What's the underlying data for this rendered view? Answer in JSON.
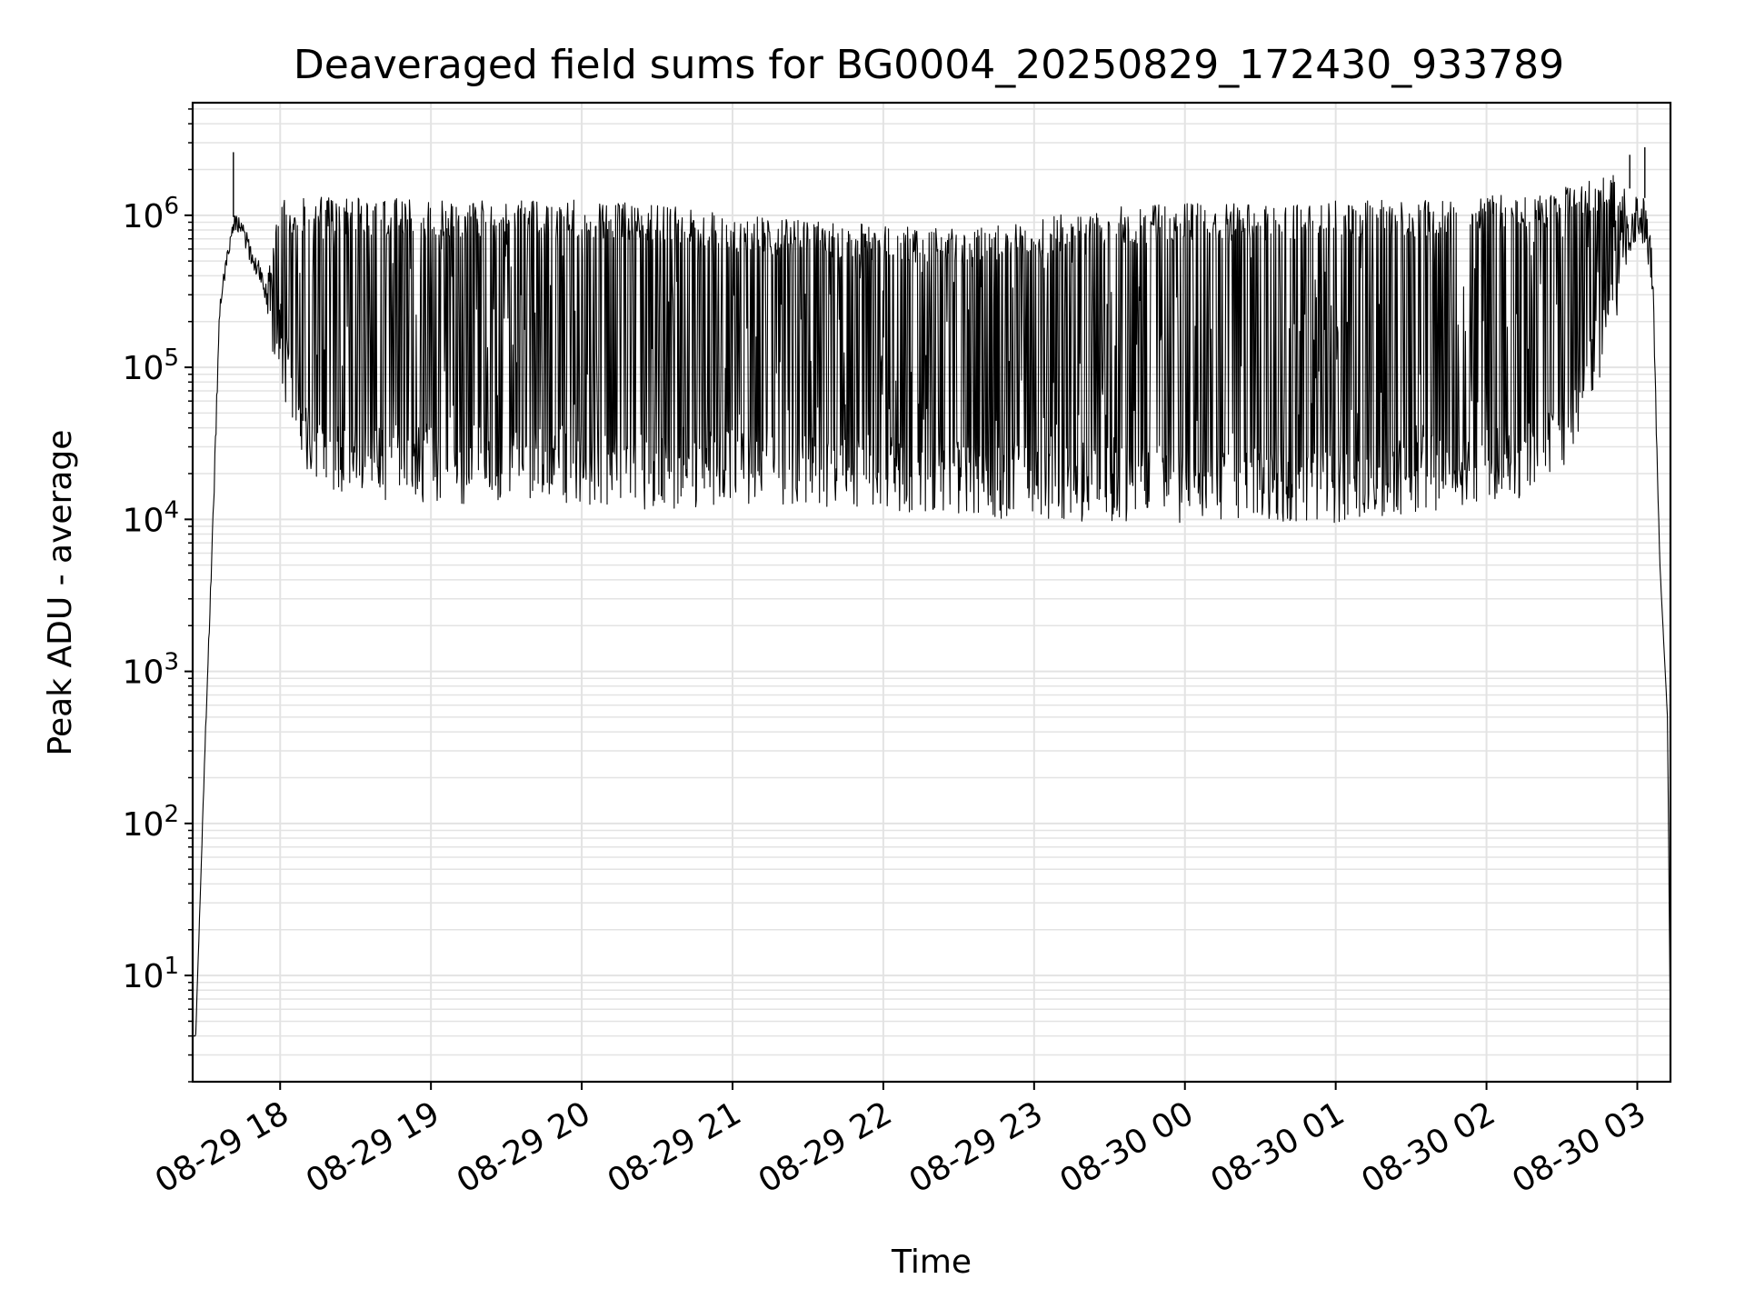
{
  "chart_data": {
    "type": "line",
    "title": "Deaveraged field sums for BG0004_20250829_172430_933789",
    "xlabel": "Time",
    "ylabel": "Peak ADU - average",
    "yscale": "log",
    "xlim": [
      -0.58,
      9.22
    ],
    "ylim": [
      2,
      5500000
    ],
    "grid": true,
    "line_color": "#000000",
    "grid_color": "#e3e3e3",
    "x_tick_values": [
      0,
      1,
      2,
      3,
      4,
      5,
      6,
      7,
      8,
      9
    ],
    "x_tick_labels": [
      "08-29 18",
      "08-29 19",
      "08-29 20",
      "08-29 21",
      "08-29 22",
      "08-29 23",
      "08-30 00",
      "08-30 01",
      "08-30 02",
      "08-30 03"
    ],
    "y_tick_values": [
      10,
      100,
      1000,
      10000,
      100000,
      1000000
    ],
    "y_tick_base": "10",
    "y_tick_exponents": [
      "1",
      "2",
      "3",
      "4",
      "5",
      "6"
    ],
    "envelope": {
      "x_hours_from_18": [
        -0.58,
        -0.56,
        -0.5,
        -0.45,
        -0.4,
        -0.35,
        -0.3,
        -0.25,
        -0.2,
        -0.15,
        -0.1,
        0.0,
        0.1,
        0.2,
        0.3,
        0.5,
        1.0,
        1.5,
        2.0,
        2.5,
        3.0,
        3.5,
        4.0,
        4.5,
        5.0,
        5.5,
        6.0,
        6.5,
        7.0,
        7.5,
        7.9,
        8.2,
        8.5,
        8.75,
        8.9,
        9.0,
        9.05,
        9.1,
        9.15,
        9.2,
        9.22
      ],
      "lower_peak_adu": [
        4,
        4,
        250,
        6000,
        200000,
        500000,
        800000,
        650000,
        500000,
        380000,
        250000,
        120000,
        50000,
        28000,
        25000,
        22000,
        20000,
        20000,
        20000,
        18000,
        20000,
        19000,
        18000,
        17000,
        15000,
        15000,
        15000,
        15000,
        15000,
        17000,
        20000,
        21000,
        30000,
        120000,
        400000,
        700000,
        600000,
        300000,
        5000,
        500,
        4
      ],
      "upper_peak_adu": [
        4,
        4,
        300,
        8000,
        300000,
        600000,
        1100000,
        900000,
        700000,
        550000,
        350000,
        1100000,
        1050000,
        1050000,
        1050000,
        1050000,
        1000000,
        1000000,
        1000000,
        950000,
        800000,
        750000,
        700000,
        650000,
        750000,
        900000,
        950000,
        950000,
        1000000,
        1000000,
        1050000,
        1100000,
        1200000,
        1400000,
        1500000,
        1500000,
        1300000,
        600000,
        5000,
        500,
        4
      ]
    },
    "notable_peaks": [
      {
        "x": -0.31,
        "y": 2600000
      },
      {
        "x": 8.95,
        "y": 2500000
      },
      {
        "x": 9.05,
        "y": 2800000
      }
    ],
    "typical_spike_max": 1050000,
    "typical_floor": 15000
  }
}
